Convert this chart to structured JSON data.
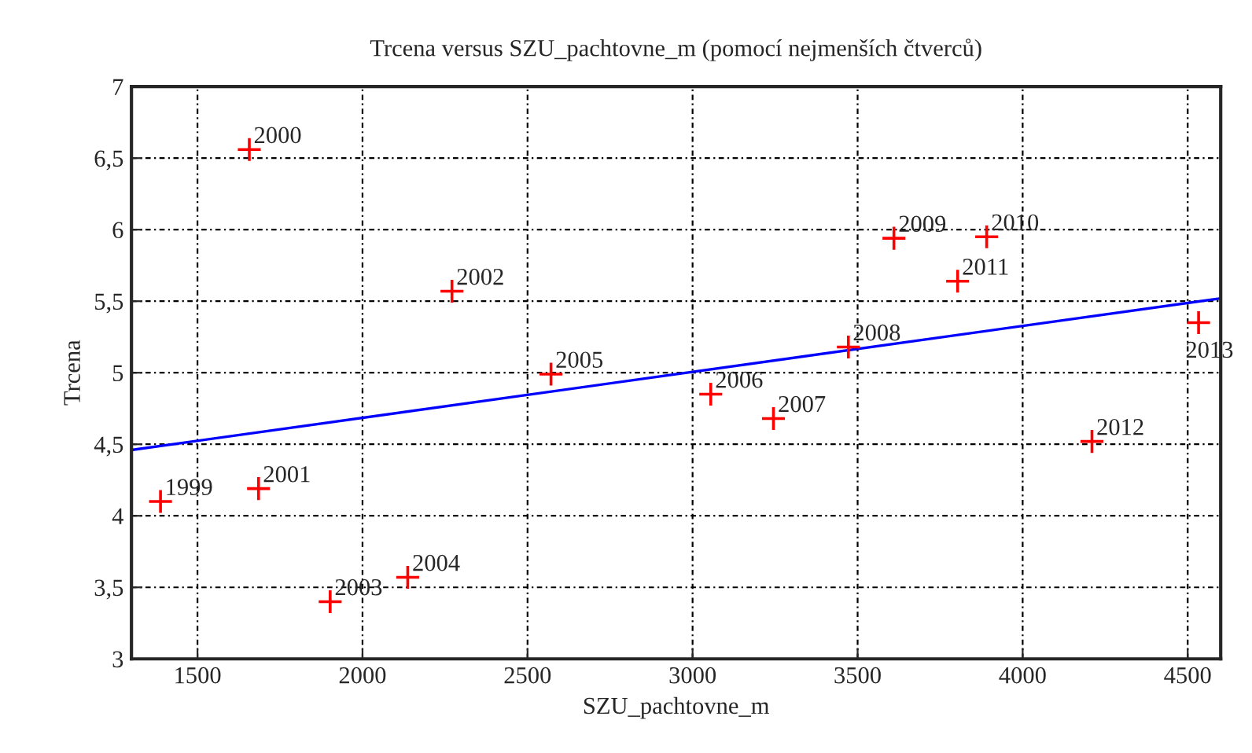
{
  "chart_data": {
    "type": "scatter",
    "title": "Trcena versus SZU_pachtovne_m (pomocí nejmenších čtverců)",
    "xlabel": "SZU_pachtovne_m",
    "ylabel": "Trcena",
    "series": [
      {
        "color": "#ff0000",
        "marker": "cross",
        "x": [
          1388,
          1657,
          1685,
          2271,
          1902,
          2137,
          2571,
          3055,
          3245,
          3472,
          3610,
          3891,
          3803,
          4210,
          4533
        ],
        "values": [
          4.1,
          6.56,
          4.19,
          5.57,
          3.4,
          3.57,
          4.99,
          4.85,
          4.68,
          5.18,
          5.94,
          5.95,
          5.64,
          4.52,
          5.35
        ]
      },
      {
        "type": "line",
        "color": "#0000ff",
        "marker": "none",
        "line_style": "solid",
        "x": [
          1300,
          4600
        ],
        "values": [
          4.46,
          5.52
        ]
      }
    ],
    "xlim": [
      1300,
      4600
    ],
    "xticks": [
      1500,
      2000,
      2500,
      3000,
      3500,
      4000,
      4500
    ],
    "ylim": [
      3,
      7
    ],
    "yticks": [
      3,
      {
        "value": 3.5,
        "label": "3,5"
      },
      4,
      {
        "value": 4.5,
        "label": "4,5"
      },
      5,
      {
        "value": 5.5,
        "label": "5,5"
      },
      6,
      {
        "value": 6.5,
        "label": "6,5"
      },
      7
    ],
    "annotations": [
      {
        "text": "1999",
        "x": 1388,
        "y": 4.1
      },
      {
        "text": "2000",
        "x": 1657,
        "y": 6.56
      },
      {
        "text": "2001",
        "x": 1685,
        "y": 4.19
      },
      {
        "text": "2002",
        "x": 2271,
        "y": 5.57
      },
      {
        "text": "2003",
        "x": 1902,
        "y": 3.4
      },
      {
        "text": "2004",
        "x": 2137,
        "y": 3.57
      },
      {
        "text": "2005",
        "x": 2571,
        "y": 4.99
      },
      {
        "text": "2006",
        "x": 3055,
        "y": 4.85
      },
      {
        "text": "2007",
        "x": 3245,
        "y": 4.68
      },
      {
        "text": "2008",
        "x": 3472,
        "y": 5.18
      },
      {
        "text": "2009",
        "x": 3610,
        "y": 5.94
      },
      {
        "text": "2010",
        "x": 3891,
        "y": 5.95
      },
      {
        "text": "2011",
        "x": 3803,
        "y": 5.64
      },
      {
        "text": "2012",
        "x": 4210,
        "y": 4.52
      },
      {
        "text": "2013",
        "x": 4533,
        "y": 5.35
      }
    ],
    "grid": true,
    "legend": false
  }
}
